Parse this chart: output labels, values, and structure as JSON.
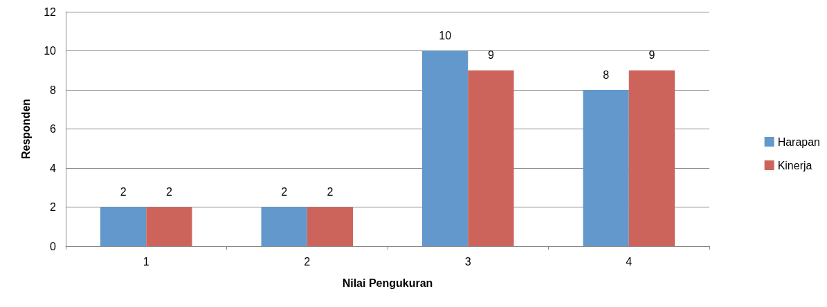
{
  "chart_data": {
    "type": "bar",
    "xlabel": "Nilai Pengukuran",
    "ylabel": "Responden",
    "categories": [
      "1",
      "2",
      "3",
      "4"
    ],
    "series": [
      {
        "name": "Harapan",
        "color": "#6398cc",
        "values": [
          2,
          2,
          10,
          8
        ]
      },
      {
        "name": "Kinerja",
        "color": "#cd645c",
        "values": [
          2,
          2,
          9,
          9
        ]
      }
    ],
    "ylim": [
      0,
      12
    ],
    "yticks": [
      0,
      2,
      4,
      6,
      8,
      10,
      12
    ],
    "grid": "y",
    "legend": "right",
    "data_labels": true
  }
}
